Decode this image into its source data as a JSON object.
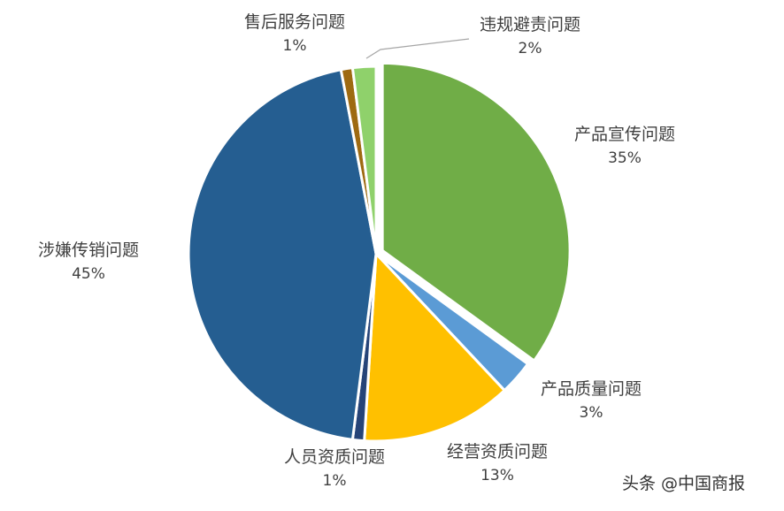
{
  "chart_data": {
    "type": "pie",
    "title": "",
    "slices": [
      {
        "label": "产品宣传问题",
        "value": 35,
        "pct_label": "35%",
        "color": "#70AD47"
      },
      {
        "label": "产品质量问题",
        "value": 3,
        "pct_label": "3%",
        "color": "#5B9BD5"
      },
      {
        "label": "经营资质问题",
        "value": 13,
        "pct_label": "13%",
        "color": "#FFC000"
      },
      {
        "label": "人员资质问题",
        "value": 1,
        "pct_label": "1%",
        "color": "#264478"
      },
      {
        "label": "涉嫌传销问题",
        "value": 45,
        "pct_label": "45%",
        "color": "#255E91"
      },
      {
        "label": "售后服务问题",
        "value": 1,
        "pct_label": "1%",
        "color": "#9E6A11"
      },
      {
        "label": "违规避责问题",
        "value": 2,
        "pct_label": "2%",
        "color": "#8FD16B"
      }
    ],
    "legend": "none"
  },
  "watermark": "头条 @中国商报"
}
